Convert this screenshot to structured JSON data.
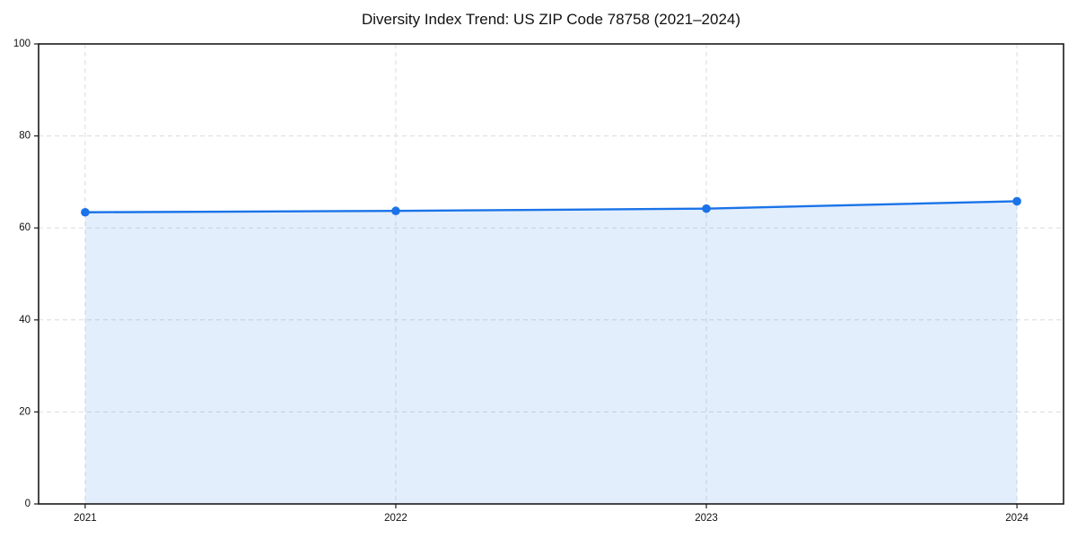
{
  "chart": {
    "title": "Diversity Index Trend: US ZIP Code 78758 (2021–2024)"
  },
  "chart_data": {
    "type": "area",
    "title": "Diversity Index Trend: US ZIP Code 78758 (2021–2024)",
    "categories": [
      "2021",
      "2022",
      "2023",
      "2024"
    ],
    "series": [
      {
        "name": "Diversity Index",
        "values": [
          63.4,
          63.7,
          64.2,
          65.8
        ]
      }
    ],
    "xlabel": "",
    "ylabel": "",
    "ylim": [
      0,
      100
    ],
    "yticks": [
      0,
      20,
      40,
      60,
      80,
      100
    ],
    "grid": true,
    "grid_style": "dashed",
    "legend": false,
    "markers": true,
    "colors": {
      "line": "#1a73e8",
      "fill": "rgba(26,115,232,0.12)",
      "grid": "#dcdcdc",
      "spine": "#1a1a1a",
      "text": "#111111",
      "background": "#ffffff"
    }
  }
}
